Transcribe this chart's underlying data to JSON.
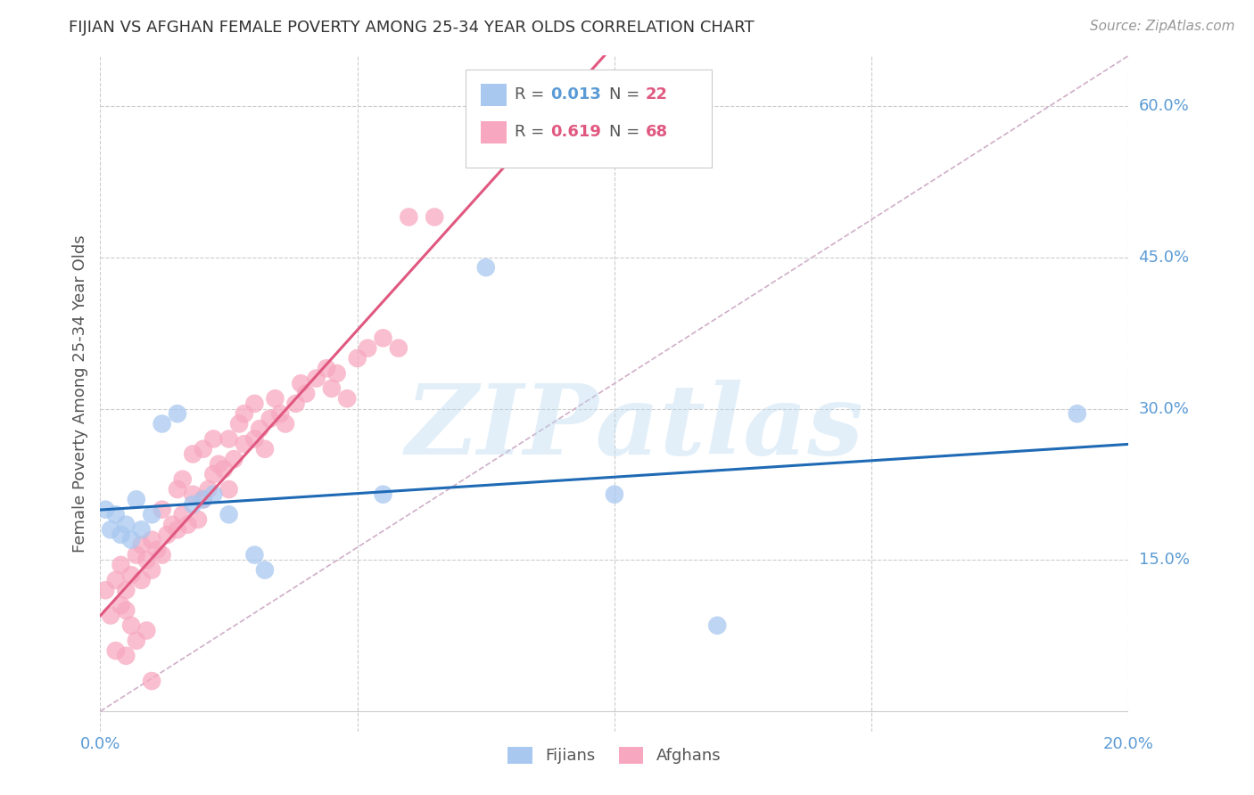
{
  "title": "FIJIAN VS AFGHAN FEMALE POVERTY AMONG 25-34 YEAR OLDS CORRELATION CHART",
  "source": "Source: ZipAtlas.com",
  "ylabel": "Female Poverty Among 25-34 Year Olds",
  "xlim": [
    0.0,
    0.2
  ],
  "ylim": [
    -0.02,
    0.65
  ],
  "ytick_labels_right": [
    "15.0%",
    "30.0%",
    "45.0%",
    "60.0%"
  ],
  "ytick_vals_right": [
    0.15,
    0.3,
    0.45,
    0.6
  ],
  "grid_color": "#cccccc",
  "background_color": "#ffffff",
  "fijian_color": "#a8c8f0",
  "afghan_color": "#f7a8c0",
  "fijian_label": "Fijians",
  "afghan_label": "Afghans",
  "fijians_x": [
    0.001,
    0.002,
    0.003,
    0.004,
    0.005,
    0.006,
    0.007,
    0.008,
    0.01,
    0.012,
    0.015,
    0.018,
    0.02,
    0.022,
    0.025,
    0.03,
    0.032,
    0.055,
    0.075,
    0.1,
    0.12,
    0.19
  ],
  "fijians_y": [
    0.2,
    0.18,
    0.195,
    0.175,
    0.185,
    0.17,
    0.21,
    0.18,
    0.195,
    0.285,
    0.295,
    0.205,
    0.21,
    0.215,
    0.195,
    0.155,
    0.14,
    0.215,
    0.44,
    0.215,
    0.085,
    0.295
  ],
  "afghans_x": [
    0.001,
    0.002,
    0.003,
    0.003,
    0.004,
    0.004,
    0.005,
    0.005,
    0.005,
    0.006,
    0.006,
    0.007,
    0.007,
    0.008,
    0.008,
    0.009,
    0.009,
    0.01,
    0.01,
    0.01,
    0.011,
    0.012,
    0.012,
    0.013,
    0.014,
    0.015,
    0.015,
    0.016,
    0.016,
    0.017,
    0.018,
    0.018,
    0.019,
    0.02,
    0.02,
    0.021,
    0.022,
    0.022,
    0.023,
    0.024,
    0.025,
    0.025,
    0.026,
    0.027,
    0.028,
    0.028,
    0.03,
    0.03,
    0.031,
    0.032,
    0.033,
    0.034,
    0.035,
    0.036,
    0.038,
    0.039,
    0.04,
    0.042,
    0.044,
    0.045,
    0.046,
    0.048,
    0.05,
    0.052,
    0.055,
    0.058,
    0.06,
    0.065
  ],
  "afghans_y": [
    0.12,
    0.095,
    0.13,
    0.06,
    0.105,
    0.145,
    0.1,
    0.12,
    0.055,
    0.135,
    0.085,
    0.155,
    0.07,
    0.13,
    0.165,
    0.15,
    0.08,
    0.14,
    0.17,
    0.03,
    0.16,
    0.155,
    0.2,
    0.175,
    0.185,
    0.18,
    0.22,
    0.195,
    0.23,
    0.185,
    0.215,
    0.255,
    0.19,
    0.21,
    0.26,
    0.22,
    0.235,
    0.27,
    0.245,
    0.24,
    0.22,
    0.27,
    0.25,
    0.285,
    0.265,
    0.295,
    0.27,
    0.305,
    0.28,
    0.26,
    0.29,
    0.31,
    0.295,
    0.285,
    0.305,
    0.325,
    0.315,
    0.33,
    0.34,
    0.32,
    0.335,
    0.31,
    0.35,
    0.36,
    0.37,
    0.36,
    0.49,
    0.49
  ],
  "watermark_text": "ZIPatlas",
  "title_color": "#333333",
  "axis_label_color": "#555555",
  "tick_color_right": "#5b9bd5",
  "regression_blue_color": "#1f6ab5",
  "regression_pink_color": "#e05880",
  "diagonal_color": "#d0aec8"
}
